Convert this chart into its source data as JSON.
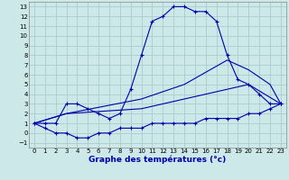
{
  "xlabel": "Graphe des températures (°c)",
  "bg_color": "#cce8e8",
  "grid_color": "#aacccc",
  "line_color": "#0000aa",
  "xlim": [
    -0.5,
    23.5
  ],
  "ylim": [
    -1.5,
    13.5
  ],
  "xticks": [
    0,
    1,
    2,
    3,
    4,
    5,
    6,
    7,
    8,
    9,
    10,
    11,
    12,
    13,
    14,
    15,
    16,
    17,
    18,
    19,
    20,
    21,
    22,
    23
  ],
  "yticks": [
    -1,
    0,
    1,
    2,
    3,
    4,
    5,
    6,
    7,
    8,
    9,
    10,
    11,
    12,
    13
  ],
  "curve1": {
    "x": [
      0,
      1,
      2,
      3,
      4,
      5,
      6,
      7,
      8,
      9,
      10,
      11,
      12,
      13,
      14,
      15,
      16,
      17,
      18,
      19,
      20,
      21,
      22,
      23
    ],
    "y": [
      1.0,
      1.0,
      1.0,
      3.0,
      3.0,
      2.5,
      2.0,
      1.5,
      2.0,
      4.5,
      8.0,
      11.5,
      12.0,
      13.0,
      13.0,
      12.5,
      12.5,
      11.5,
      8.0,
      5.5,
      5.0,
      4.0,
      3.0,
      3.0
    ]
  },
  "curve2": {
    "x": [
      0,
      3,
      10,
      14,
      18,
      20,
      22,
      23
    ],
    "y": [
      1.0,
      2.0,
      3.5,
      5.0,
      7.5,
      6.5,
      5.0,
      3.0
    ]
  },
  "curve3": {
    "x": [
      0,
      3,
      10,
      14,
      20,
      23
    ],
    "y": [
      1.0,
      2.0,
      2.5,
      3.5,
      5.0,
      3.0
    ]
  },
  "curve4": {
    "x": [
      0,
      1,
      2,
      3,
      4,
      5,
      6,
      7,
      8,
      9,
      10,
      11,
      12,
      13,
      14,
      15,
      16,
      17,
      18,
      19,
      20,
      21,
      22,
      23
    ],
    "y": [
      1.0,
      0.5,
      0.0,
      0.0,
      -0.5,
      -0.5,
      0.0,
      0.0,
      0.5,
      0.5,
      0.5,
      1.0,
      1.0,
      1.0,
      1.0,
      1.0,
      1.5,
      1.5,
      1.5,
      1.5,
      2.0,
      2.0,
      2.5,
      3.0
    ]
  }
}
